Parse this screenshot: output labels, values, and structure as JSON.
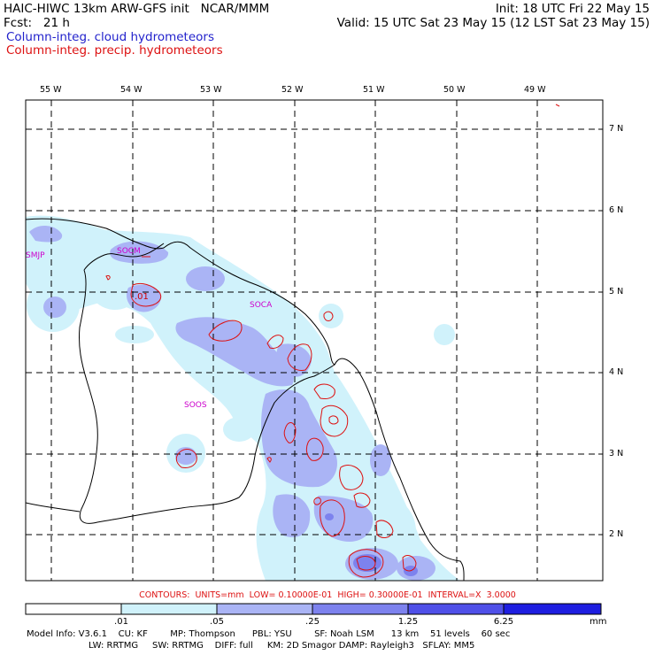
{
  "header": {
    "title": "HAIC-HIWC 13km ARW-GFS init   NCAR/MMM",
    "init": "Init: 18 UTC Fri 22 May 15",
    "fcst": "Fcst:   21 h",
    "valid": "Valid: 15 UTC Sat 23 May 15 (12 LST Sat 23 May 15)",
    "field1": "Column-integ. cloud hydrometeors",
    "field2": "Column-integ. precip. hydrometeors"
  },
  "map": {
    "lon_labels": [
      "55 W",
      "54 W",
      "53 W",
      "52 W",
      "51 W",
      "50 W",
      "49 W"
    ],
    "lat_labels": [
      "7 N",
      "6 N",
      "5 N",
      "4 N",
      "3 N",
      "2 N"
    ],
    "places": [
      "SMJP",
      "SOCM",
      "SOCA",
      "SOOS"
    ],
    "contour_label": ".01"
  },
  "footer": {
    "contours": "CONTOURS:  UNITS=mm  LOW= 0.10000E-01  HIGH= 0.30000E-01  INTERVAL=X  3.0000",
    "colorbar": {
      "labels": [
        ".01",
        ".05",
        ".25",
        "1.25",
        "6.25"
      ],
      "unit": "mm",
      "colors": [
        "#ffffff",
        "#d0f2fb",
        "#aab4f5",
        "#7d82ee",
        "#4f50e8",
        "#1e1ee0"
      ]
    },
    "model_line1": "Model Info: V3.6.1    CU: KF        MP: Thompson      PBL: YSU        SF: Noah LSM      13 km    51 levels    60 sec",
    "model_line2": "LW: RRTMG     SW: RRTMG    DIFF: full     KM: 2D Smagor DAMP: Rayleigh3   SFLAY: MM5"
  },
  "colors": {
    "contour": "#dd1111",
    "label_blue": "#2222cc",
    "place_magenta": "#cc00cc"
  }
}
